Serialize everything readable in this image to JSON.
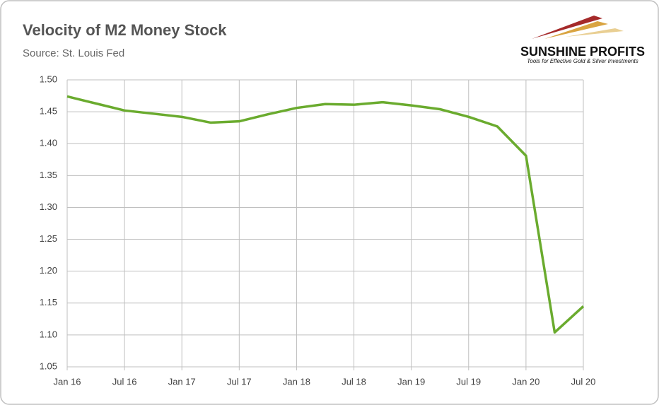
{
  "chart_data": {
    "type": "line",
    "title": "Velocity of M2 Money Stock",
    "subtitle": "Source: St. Louis Fed",
    "logo": {
      "name": "SUNSHINE PROFITS",
      "tagline": "Tools for Effective Gold & Silver Investments"
    },
    "categories": [
      "Jan 16",
      null,
      "Jul 16",
      null,
      "Jan 17",
      null,
      "Jul 17",
      null,
      "Jan 18",
      null,
      "Jul 18",
      null,
      "Jan 19",
      null,
      "Jul 19",
      null,
      "Jan 20",
      null,
      "Jul 20"
    ],
    "series": [
      {
        "name": "Velocity of M2",
        "color": "#6aab2e",
        "values": [
          1.474,
          1.463,
          1.452,
          1.447,
          1.442,
          1.433,
          1.435,
          1.446,
          1.456,
          1.462,
          1.461,
          1.465,
          1.46,
          1.454,
          1.442,
          1.427,
          1.381,
          1.104,
          1.145
        ]
      }
    ],
    "ylim": [
      1.05,
      1.5
    ],
    "yticks": [
      {
        "value": 1.05,
        "label": "1.05"
      },
      {
        "value": 1.1,
        "label": "1.10"
      },
      {
        "value": 1.15,
        "label": "1.15"
      },
      {
        "value": 1.2,
        "label": "1.20"
      },
      {
        "value": 1.25,
        "label": "1.25"
      },
      {
        "value": 1.3,
        "label": "1.30"
      },
      {
        "value": 1.35,
        "label": "1.35"
      },
      {
        "value": 1.4,
        "label": "1.40"
      },
      {
        "value": 1.45,
        "label": "1.45"
      },
      {
        "value": 1.5,
        "label": "1.50"
      }
    ],
    "grid": true
  }
}
